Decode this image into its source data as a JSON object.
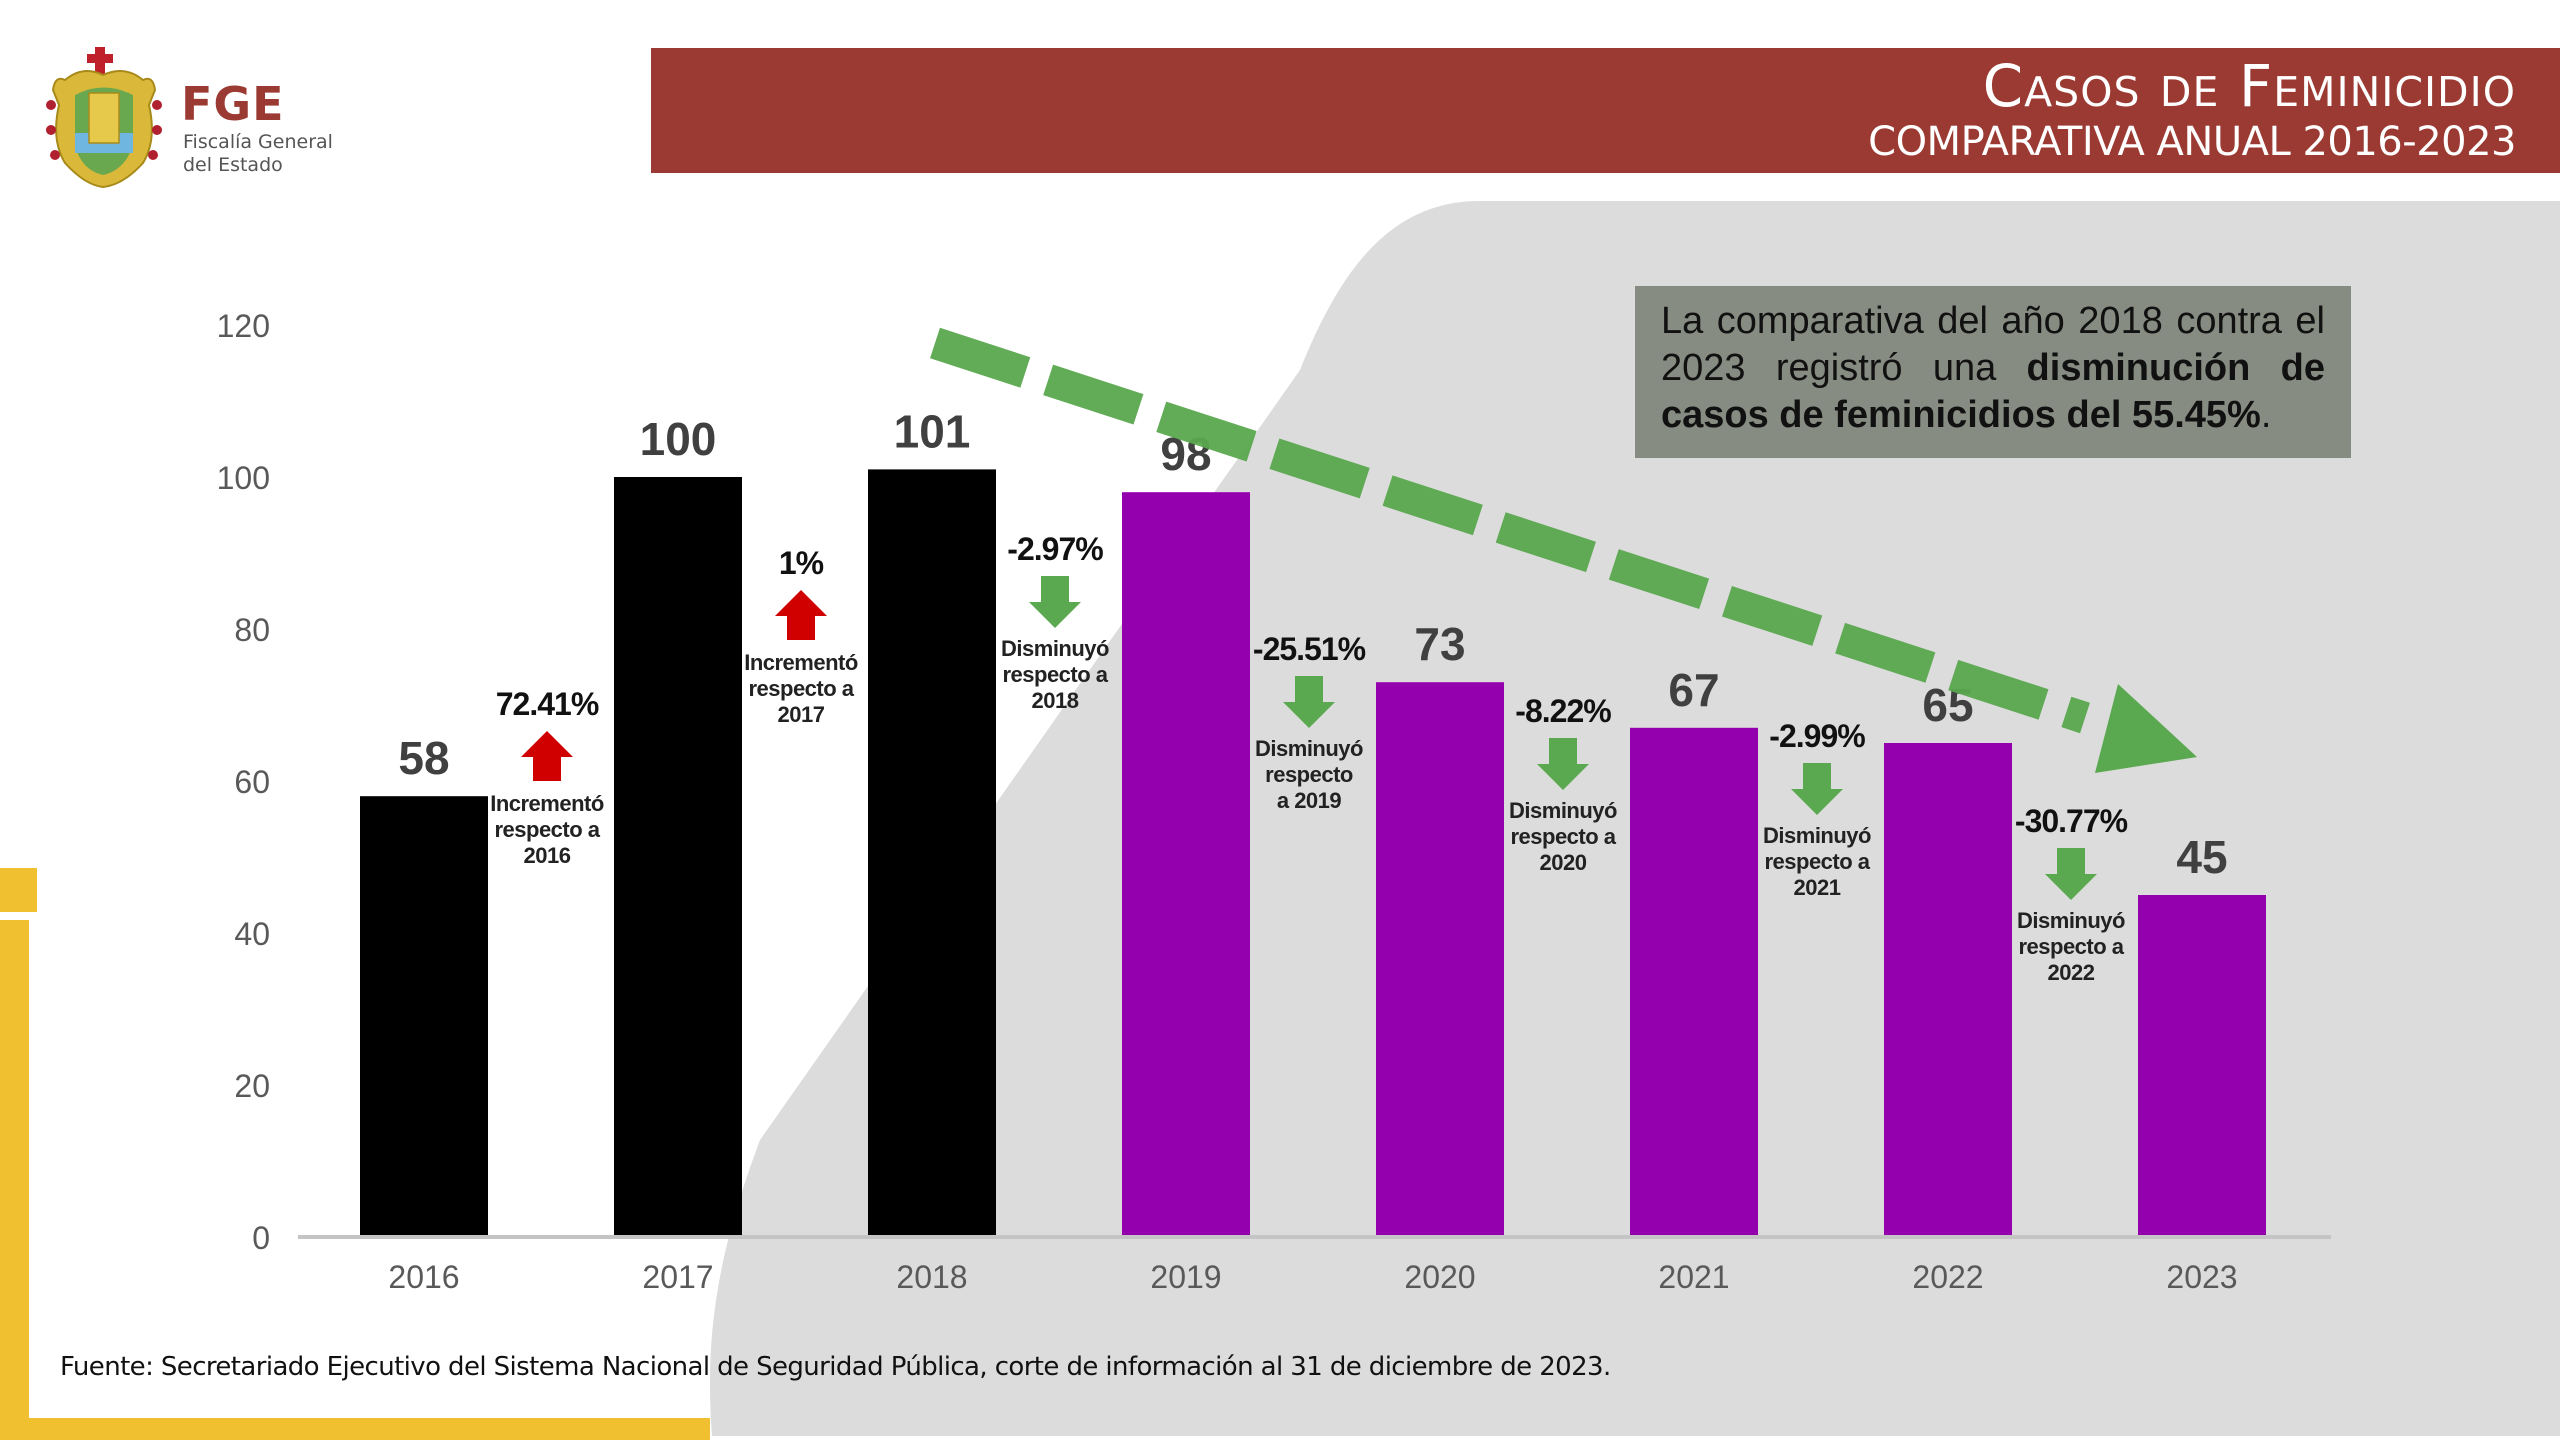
{
  "header": {
    "title": "Casos de Feminicidio",
    "subtitle": "COMPARATIVA ANUAL 2016-2023"
  },
  "logo": {
    "acronym": "FGE",
    "name_line1": "Fiscalía General",
    "name_line2": "del Estado",
    "emblem_icon": "state-coat-of-arms-icon"
  },
  "colors": {
    "header_red": "#9b3a33",
    "accent_yellow": "#f0c030",
    "panel_gray": "#dcdcdc",
    "box_gray": "#878c82",
    "bar_black": "#000000",
    "bar_purple": "#9400ae",
    "increase_red": "#d00000",
    "decrease_green": "#5aa84f"
  },
  "info_box": {
    "text_normal_1": "La comparativa del año 2018 contra el 2023 registró una ",
    "text_bold": "disminución de casos de feminicidios del 55.45%",
    "text_normal_2": "."
  },
  "footer": {
    "source": "Fuente: Secretariado Ejecutivo del Sistema Nacional de Seguridad Pública, corte de información al 31 de diciembre de 2023."
  },
  "chart_data": {
    "type": "bar",
    "title": "Casos de Feminicidio — Comparativa anual 2016-2023",
    "xlabel": "",
    "ylabel": "",
    "ylim": [
      0,
      120
    ],
    "yticks": [
      0,
      20,
      40,
      60,
      80,
      100,
      120
    ],
    "grid": false,
    "legend": "none",
    "categories": [
      "2016",
      "2017",
      "2018",
      "2019",
      "2020",
      "2021",
      "2022",
      "2023"
    ],
    "values": [
      58,
      100,
      101,
      98,
      73,
      67,
      65,
      45
    ],
    "data_labels": [
      "58",
      "100",
      "101",
      "98",
      "73",
      "67",
      "65",
      "45"
    ],
    "bar_colors": [
      "black",
      "black",
      "black",
      "purple",
      "purple",
      "purple",
      "purple",
      "purple"
    ],
    "annotations": [
      {
        "between": [
          "2016",
          "2017"
        ],
        "direction": "up",
        "value": "72.41%",
        "lines": [
          "Incrementó",
          "respecto a",
          "2016"
        ]
      },
      {
        "between": [
          "2017",
          "2018"
        ],
        "direction": "up",
        "value": "1%",
        "lines": [
          "Incrementó",
          "respecto a",
          "2017"
        ]
      },
      {
        "between": [
          "2018",
          "2019"
        ],
        "direction": "down",
        "value": "-2.97%",
        "lines": [
          "Disminuyó",
          "respecto a",
          "2018"
        ]
      },
      {
        "between": [
          "2019",
          "2020"
        ],
        "direction": "down",
        "value": "-25.51%",
        "lines": [
          "Disminuyó",
          "respecto",
          "a 2019"
        ]
      },
      {
        "between": [
          "2020",
          "2021"
        ],
        "direction": "down",
        "value": "-8.22%",
        "lines": [
          "Disminuyó",
          "respecto a",
          "2020"
        ]
      },
      {
        "between": [
          "2021",
          "2022"
        ],
        "direction": "down",
        "value": "-2.99%",
        "lines": [
          "Disminuyó",
          "respecto a",
          "2021"
        ]
      },
      {
        "between": [
          "2022",
          "2023"
        ],
        "direction": "down",
        "value": "-30.77%",
        "lines": [
          "Disminuyó",
          "respecto a",
          "2022"
        ]
      }
    ],
    "trend_arrow": {
      "from": "2018",
      "to": "2023",
      "direction": "down",
      "style": "dashed"
    }
  }
}
